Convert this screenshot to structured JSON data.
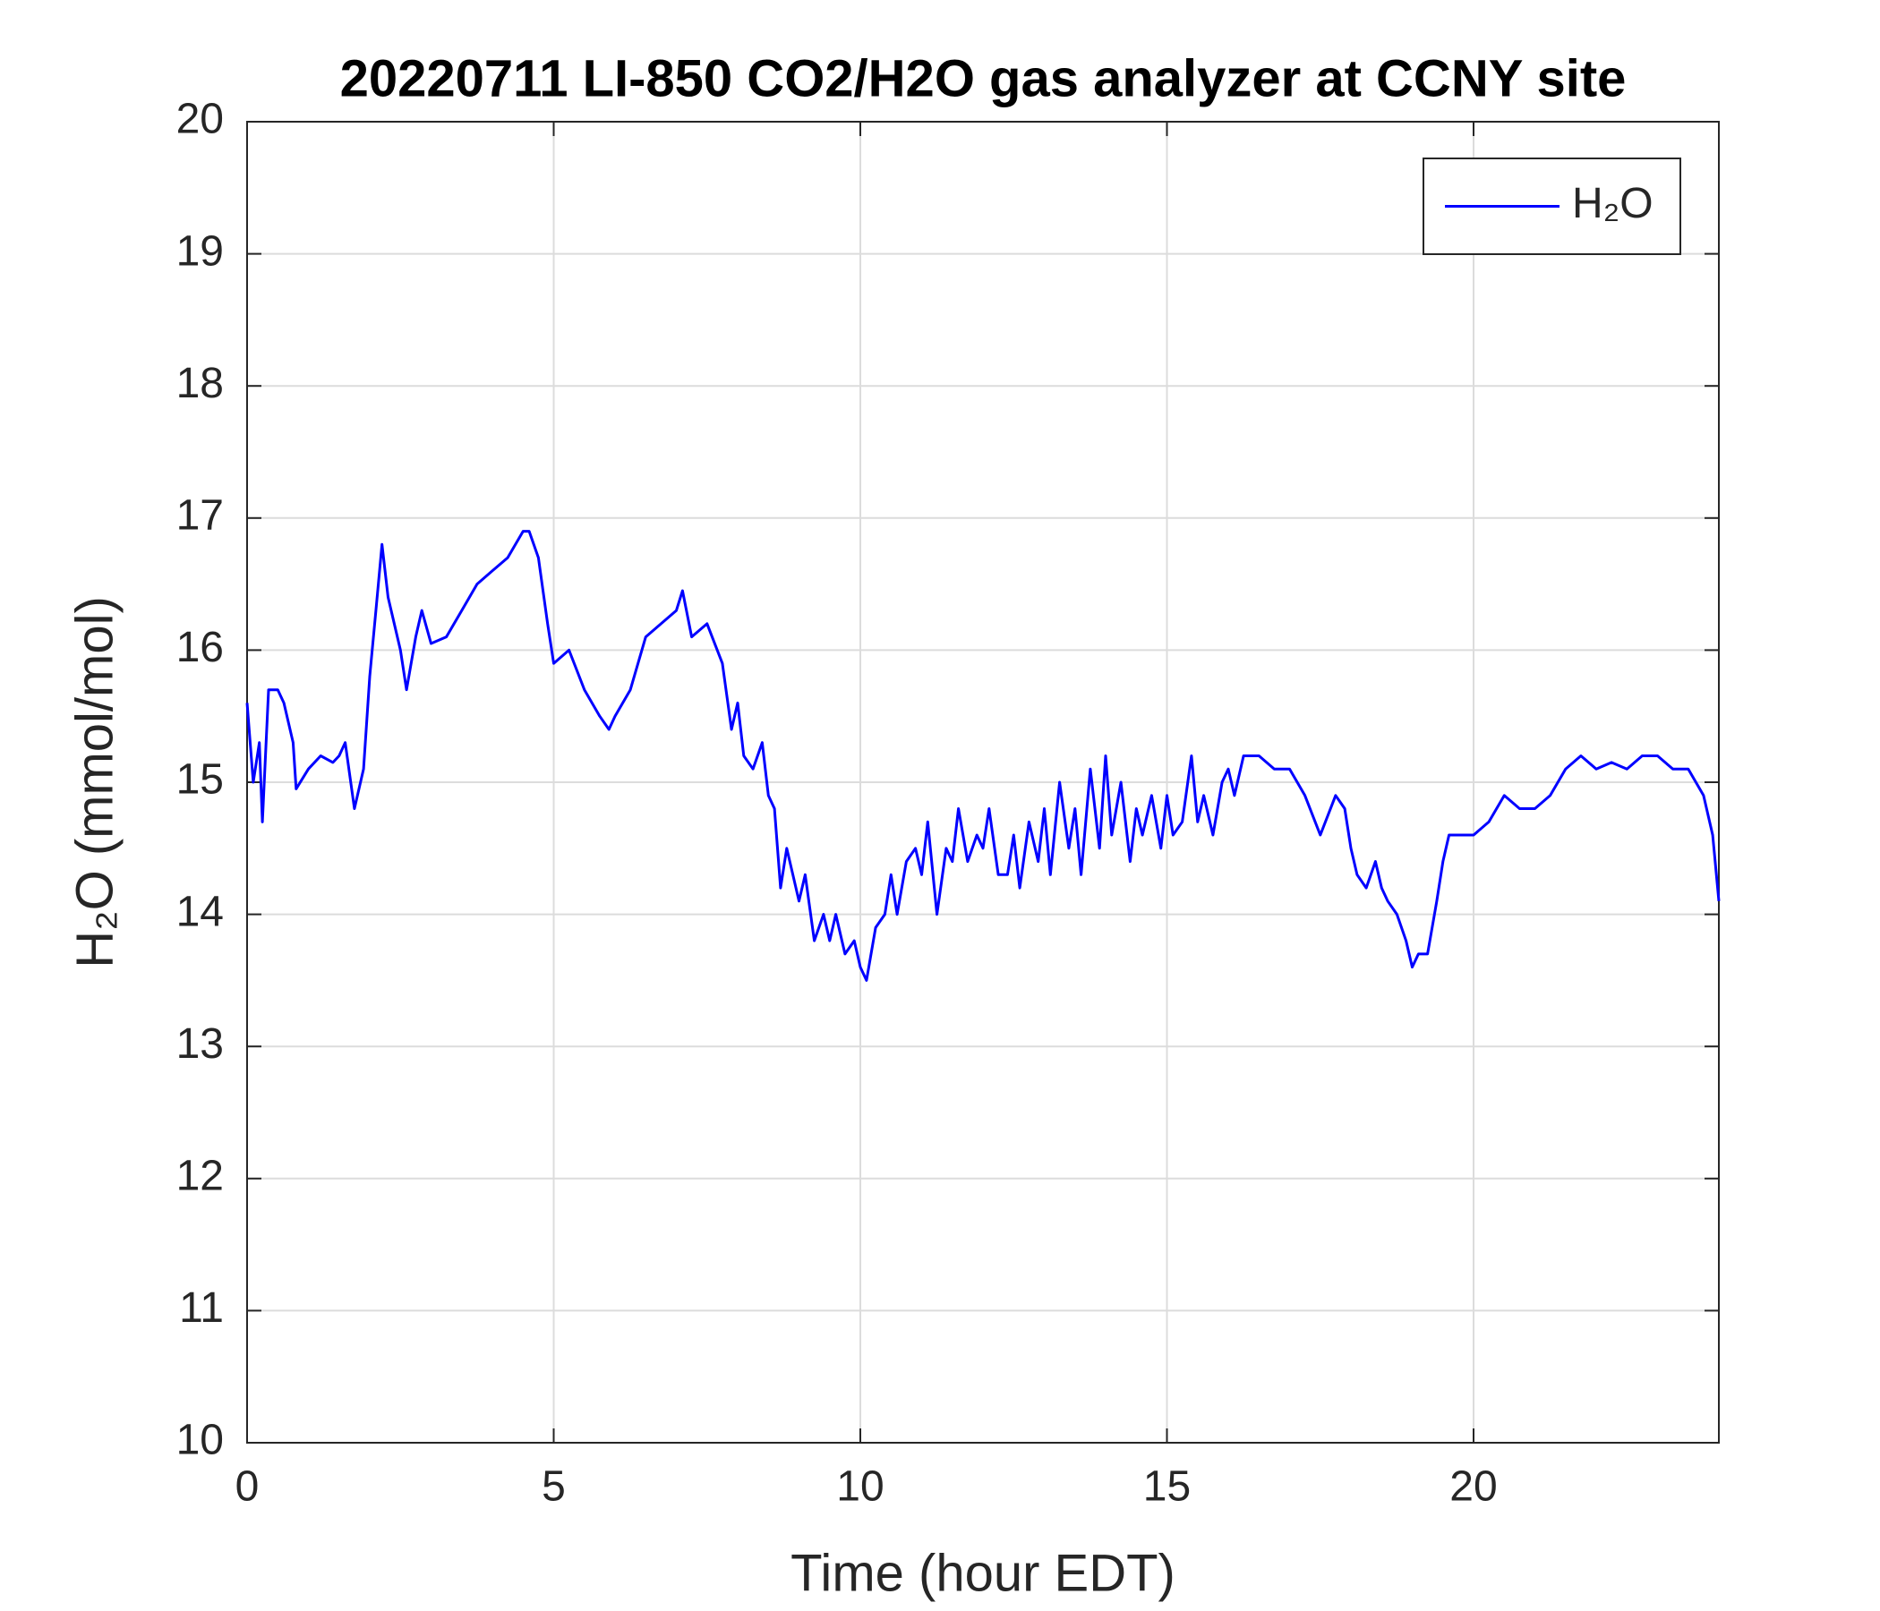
{
  "chart_data": {
    "type": "line",
    "title": "20220711 LI-850 CO2/H2O gas analyzer at CCNY site",
    "xlabel": "Time (hour EDT)",
    "ylabel": "H₂O (mmol/mol)",
    "xlim": [
      0,
      24
    ],
    "xticks": [
      0,
      5,
      10,
      15,
      20
    ],
    "ylim": [
      10,
      20
    ],
    "yticks": [
      10,
      11,
      12,
      13,
      14,
      15,
      16,
      17,
      18,
      19,
      20
    ],
    "grid": true,
    "legend": "top-right",
    "x": [
      0,
      0.1,
      0.2,
      0.25,
      0.35,
      0.5,
      0.6,
      0.75,
      0.8,
      1.0,
      1.2,
      1.4,
      1.5,
      1.6,
      1.75,
      1.9,
      2.0,
      2.1,
      2.2,
      2.3,
      2.5,
      2.6,
      2.75,
      2.85,
      3.0,
      3.25,
      3.5,
      3.75,
      4.0,
      4.25,
      4.5,
      4.6,
      4.75,
      4.9,
      5.0,
      5.25,
      5.5,
      5.75,
      5.9,
      6.0,
      6.25,
      6.5,
      6.75,
      7.0,
      7.1,
      7.25,
      7.5,
      7.75,
      7.9,
      8.0,
      8.1,
      8.25,
      8.4,
      8.5,
      8.6,
      8.7,
      8.8,
      9.0,
      9.1,
      9.25,
      9.4,
      9.5,
      9.6,
      9.75,
      9.9,
      10.0,
      10.1,
      10.25,
      10.4,
      10.5,
      10.6,
      10.75,
      10.9,
      11.0,
      11.1,
      11.25,
      11.4,
      11.5,
      11.6,
      11.75,
      11.9,
      12.0,
      12.1,
      12.25,
      12.4,
      12.5,
      12.6,
      12.75,
      12.9,
      13.0,
      13.1,
      13.25,
      13.4,
      13.5,
      13.6,
      13.75,
      13.9,
      14.0,
      14.1,
      14.25,
      14.4,
      14.5,
      14.6,
      14.75,
      14.9,
      15.0,
      15.1,
      15.25,
      15.4,
      15.5,
      15.6,
      15.75,
      15.9,
      16.0,
      16.1,
      16.25,
      16.5,
      16.75,
      17.0,
      17.25,
      17.5,
      17.75,
      17.9,
      18.0,
      18.1,
      18.25,
      18.4,
      18.5,
      18.6,
      18.75,
      18.9,
      19.0,
      19.1,
      19.25,
      19.4,
      19.5,
      19.6,
      19.75,
      20.0,
      20.25,
      20.5,
      20.75,
      21.0,
      21.25,
      21.5,
      21.75,
      22.0,
      22.25,
      22.5,
      22.75,
      23.0,
      23.25,
      23.5,
      23.75,
      23.9,
      24.0
    ],
    "series": [
      {
        "name": "H₂O",
        "color": "#0000ff",
        "values": [
          15.6,
          15.0,
          15.3,
          14.7,
          15.7,
          15.7,
          15.6,
          15.3,
          14.95,
          15.1,
          15.2,
          15.15,
          15.2,
          15.3,
          14.8,
          15.1,
          15.8,
          16.3,
          16.8,
          16.4,
          16.0,
          15.7,
          16.1,
          16.3,
          16.05,
          16.1,
          16.3,
          16.5,
          16.6,
          16.7,
          16.9,
          16.9,
          16.7,
          16.2,
          15.9,
          16.0,
          15.7,
          15.5,
          15.4,
          15.5,
          15.7,
          16.1,
          16.2,
          16.3,
          16.45,
          16.1,
          16.2,
          15.9,
          15.4,
          15.6,
          15.2,
          15.1,
          15.3,
          14.9,
          14.8,
          14.2,
          14.5,
          14.1,
          14.3,
          13.8,
          14.0,
          13.8,
          14.0,
          13.7,
          13.8,
          13.6,
          13.5,
          13.9,
          14.0,
          14.3,
          14.0,
          14.4,
          14.5,
          14.3,
          14.7,
          14.0,
          14.5,
          14.4,
          14.8,
          14.4,
          14.6,
          14.5,
          14.8,
          14.3,
          14.3,
          14.6,
          14.2,
          14.7,
          14.4,
          14.8,
          14.3,
          15.0,
          14.5,
          14.8,
          14.3,
          15.1,
          14.5,
          15.2,
          14.6,
          15.0,
          14.4,
          14.8,
          14.6,
          14.9,
          14.5,
          14.9,
          14.6,
          14.7,
          15.2,
          14.7,
          14.9,
          14.6,
          15.0,
          15.1,
          14.9,
          15.2,
          15.2,
          15.1,
          15.1,
          14.9,
          14.6,
          14.9,
          14.8,
          14.5,
          14.3,
          14.2,
          14.4,
          14.2,
          14.1,
          14.0,
          13.8,
          13.6,
          13.7,
          13.7,
          14.1,
          14.4,
          14.6,
          14.6,
          14.6,
          14.7,
          14.9,
          14.8,
          14.8,
          14.9,
          15.1,
          15.2,
          15.1,
          15.15,
          15.1,
          15.2,
          15.2,
          15.1,
          15.1,
          14.9,
          14.6,
          14.1
        ]
      }
    ]
  }
}
